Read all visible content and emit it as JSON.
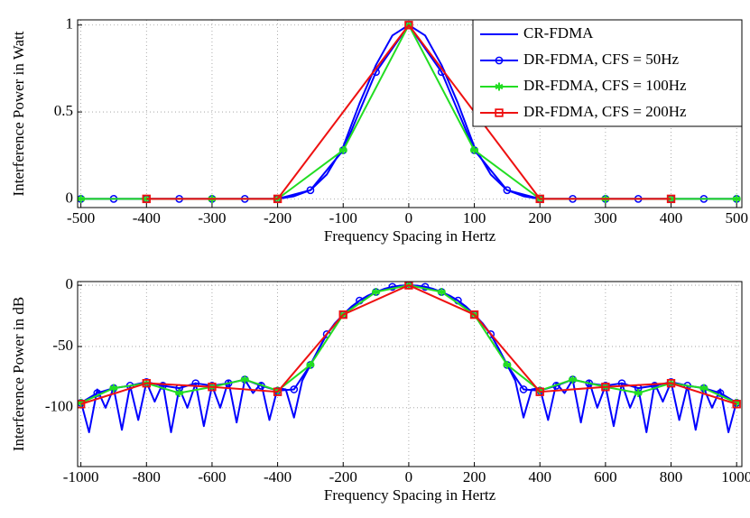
{
  "chart_data": [
    {
      "type": "line",
      "xlabel": "Frequency Spacing in Hertz",
      "ylabel": "Interference Power in Watt",
      "xlim": [
        -505,
        508
      ],
      "ylim": [
        -0.05,
        1.03
      ],
      "xticks": [
        -500,
        -400,
        -300,
        -200,
        -100,
        0,
        100,
        200,
        300,
        400,
        500
      ],
      "yticks": [
        0,
        0.5,
        1
      ],
      "grid": true,
      "legend": "upper right",
      "series": [
        {
          "name": "CR-FDMA",
          "color": "#0000ff",
          "marker": "none",
          "x": [
            -500,
            -475,
            -450,
            -425,
            -400,
            -375,
            -350,
            -325,
            -300,
            -275,
            -250,
            -225,
            -200,
            -175,
            -150,
            -125,
            -100,
            -75,
            -50,
            -25,
            0,
            25,
            50,
            75,
            100,
            125,
            150,
            175,
            200,
            225,
            250,
            275,
            300,
            325,
            350,
            375,
            400,
            425,
            450,
            475,
            500
          ],
          "values": [
            0,
            0,
            0,
            0,
            0,
            0,
            0,
            0,
            0,
            0,
            0,
            0,
            0,
            0.015,
            0.05,
            0.14,
            0.3,
            0.55,
            0.77,
            0.94,
            1,
            0.94,
            0.77,
            0.55,
            0.3,
            0.14,
            0.05,
            0.015,
            0,
            0,
            0,
            0,
            0,
            0,
            0,
            0,
            0,
            0,
            0,
            0,
            0
          ]
        },
        {
          "name": "DR-FDMA, CFS = 50Hz",
          "color": "#0000ff",
          "marker": "circle",
          "x": [
            -500,
            -450,
            -400,
            -350,
            -300,
            -250,
            -200,
            -150,
            -100,
            -50,
            0,
            50,
            100,
            150,
            200,
            250,
            300,
            350,
            400,
            450,
            500
          ],
          "values": [
            0,
            0,
            0,
            0,
            0,
            0,
            0,
            0.05,
            0.28,
            0.73,
            1,
            0.73,
            0.28,
            0.05,
            0,
            0,
            0,
            0,
            0,
            0,
            0
          ]
        },
        {
          "name": "DR-FDMA, CFS = 100Hz",
          "color": "#22dd22",
          "marker": "star",
          "x": [
            -500,
            -400,
            -300,
            -200,
            -100,
            0,
            100,
            200,
            300,
            400,
            500
          ],
          "values": [
            0,
            0,
            0,
            0,
            0.28,
            1,
            0.28,
            0,
            0,
            0,
            0
          ]
        },
        {
          "name": "DR-FDMA, CFS = 200Hz",
          "color": "#ee1111",
          "marker": "square",
          "x": [
            -400,
            -200,
            0,
            200,
            400
          ],
          "values": [
            0,
            0,
            1,
            0,
            0
          ]
        }
      ]
    },
    {
      "type": "line",
      "xlabel": "Frequency Spacing in Hertz",
      "ylabel": "Interference Power in dB",
      "xlim": [
        -1010,
        1016
      ],
      "ylim": [
        -148,
        3
      ],
      "xticks": [
        -1000,
        -800,
        -600,
        -400,
        -200,
        0,
        200,
        400,
        600,
        800,
        1000
      ],
      "yticks": [
        0,
        -50,
        -100
      ],
      "grid": true,
      "series": [
        {
          "name": "CR-FDMA",
          "color": "#0000ff",
          "marker": "none",
          "x": [
            -1000,
            -975,
            -950,
            -925,
            -900,
            -875,
            -850,
            -825,
            -800,
            -775,
            -750,
            -725,
            -700,
            -675,
            -650,
            -625,
            -600,
            -575,
            -550,
            -525,
            -500,
            -475,
            -450,
            -425,
            -400,
            -375,
            -350,
            -325,
            -300,
            -275,
            -250,
            -225,
            -200,
            -175,
            -150,
            -125,
            -100,
            -75,
            -50,
            -25,
            0,
            25,
            50,
            75,
            100,
            125,
            150,
            175,
            200,
            225,
            250,
            275,
            300,
            325,
            350,
            375,
            400,
            425,
            450,
            475,
            500,
            525,
            550,
            575,
            600,
            625,
            650,
            675,
            700,
            725,
            750,
            775,
            800,
            825,
            850,
            875,
            900,
            925,
            950,
            975,
            1000
          ],
          "values": [
            -95,
            -120,
            -85,
            -100,
            -84,
            -118,
            -82,
            -110,
            -79,
            -95,
            -80,
            -120,
            -84,
            -100,
            -80,
            -115,
            -82,
            -100,
            -78,
            -112,
            -77,
            -88,
            -80,
            -110,
            -84,
            -85,
            -108,
            -78,
            -65,
            -52,
            -40,
            -31,
            -24,
            -17.5,
            -12.5,
            -8.5,
            -5.5,
            -3,
            -1.3,
            -0.3,
            0,
            -0.3,
            -1.3,
            -3,
            -5.5,
            -8.5,
            -12.5,
            -17.5,
            -24,
            -31,
            -40,
            -52,
            -65,
            -78,
            -108,
            -85,
            -84,
            -110,
            -80,
            -88,
            -77,
            -112,
            -78,
            -100,
            -82,
            -115,
            -80,
            -100,
            -84,
            -120,
            -80,
            -95,
            -79,
            -110,
            -82,
            -118,
            -84,
            -100,
            -85,
            -120,
            -95
          ]
        },
        {
          "name": "DR-FDMA, CFS = 50Hz",
          "color": "#0000ff",
          "marker": "circle",
          "x": [
            -1000,
            -950,
            -900,
            -850,
            -800,
            -750,
            -700,
            -650,
            -600,
            -550,
            -500,
            -450,
            -400,
            -350,
            -300,
            -250,
            -200,
            -150,
            -100,
            -50,
            0,
            50,
            100,
            150,
            200,
            250,
            300,
            350,
            400,
            450,
            500,
            550,
            600,
            650,
            700,
            750,
            800,
            850,
            900,
            950,
            1000
          ],
          "values": [
            -96,
            -88,
            -84,
            -82,
            -79,
            -82,
            -84,
            -80,
            -82,
            -80,
            -77,
            -82,
            -86,
            -85,
            -65,
            -40,
            -24,
            -12.5,
            -5.5,
            -1.3,
            0,
            -1.3,
            -5.5,
            -12.5,
            -24,
            -40,
            -65,
            -85,
            -86,
            -82,
            -77,
            -80,
            -82,
            -80,
            -84,
            -82,
            -79,
            -82,
            -84,
            -88,
            -96
          ]
        },
        {
          "name": "DR-FDMA, CFS = 100Hz",
          "color": "#22dd22",
          "marker": "star",
          "x": [
            -1000,
            -900,
            -800,
            -700,
            -600,
            -500,
            -400,
            -300,
            -200,
            -100,
            0,
            100,
            200,
            300,
            400,
            500,
            600,
            700,
            800,
            900,
            1000
          ],
          "values": [
            -96,
            -84,
            -80,
            -88,
            -83,
            -77,
            -86,
            -65,
            -24,
            -5.5,
            0,
            -5.5,
            -24,
            -65,
            -86,
            -77,
            -83,
            -88,
            -80,
            -84,
            -96
          ]
        },
        {
          "name": "DR-FDMA, CFS = 200Hz",
          "color": "#ee1111",
          "marker": "square",
          "x": [
            -1000,
            -800,
            -600,
            -400,
            -200,
            0,
            200,
            400,
            600,
            800,
            1000
          ],
          "values": [
            -97,
            -80,
            -83,
            -87,
            -24,
            0,
            -24,
            -87,
            -83,
            -80,
            -97
          ]
        }
      ]
    }
  ]
}
